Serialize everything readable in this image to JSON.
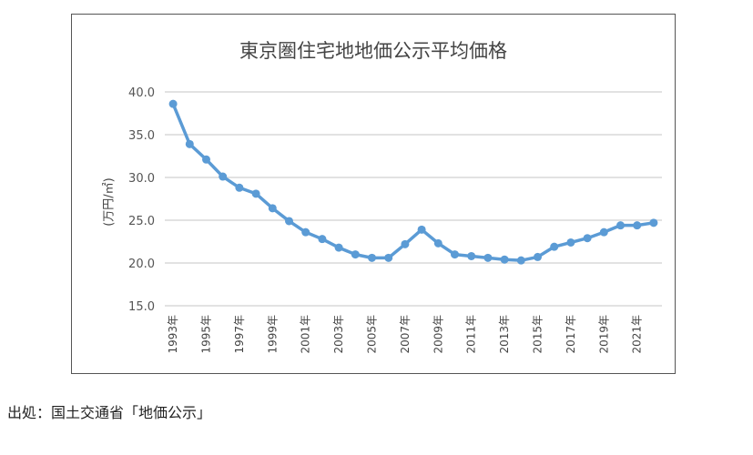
{
  "chart_data": {
    "type": "line",
    "title": "東京圏住宅地地価公示平均価格",
    "ylabel": "(万円/㎡)",
    "xlabel": "",
    "ylim": [
      15,
      40
    ],
    "yticks": [
      "15.0",
      "20.0",
      "25.0",
      "30.0",
      "35.0",
      "40.0"
    ],
    "grid": true,
    "color": "#5b9bd5",
    "categories": [
      "1993年",
      "1994年",
      "1995年",
      "1996年",
      "1997年",
      "1998年",
      "1999年",
      "2000年",
      "2001年",
      "2002年",
      "2003年",
      "2004年",
      "2005年",
      "2006年",
      "2007年",
      "2008年",
      "2009年",
      "2010年",
      "2011年",
      "2012年",
      "2013年",
      "2014年",
      "2015年",
      "2016年",
      "2017年",
      "2018年",
      "2019年",
      "2020年",
      "2021年",
      "2022年"
    ],
    "values": [
      38.6,
      33.9,
      32.1,
      30.1,
      28.8,
      28.1,
      26.4,
      24.9,
      23.6,
      22.8,
      21.8,
      21.0,
      20.6,
      20.6,
      22.2,
      23.9,
      22.3,
      21.0,
      20.8,
      20.6,
      20.4,
      20.3,
      20.7,
      21.9,
      22.4,
      22.9,
      23.6,
      24.4,
      24.4,
      24.7
    ]
  },
  "source": "出処：国土交通省「地価公示」"
}
